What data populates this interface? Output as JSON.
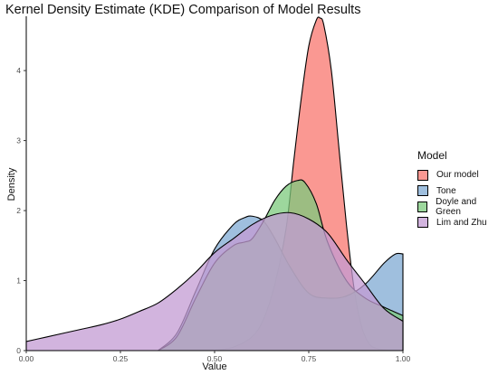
{
  "chart_data": {
    "type": "area",
    "title": "Kernel Density Estimate (KDE) Comparison of Model Results",
    "xlabel": "Value",
    "ylabel": "Density",
    "xlim": [
      0,
      1
    ],
    "ylim": [
      0,
      4.75
    ],
    "x_ticks": [
      "0.00",
      "0.25",
      "0.50",
      "0.75",
      "1.00"
    ],
    "y_ticks": [
      "0",
      "1",
      "2",
      "3",
      "4"
    ],
    "legend": {
      "title": "Model",
      "position": "right"
    },
    "grid": false,
    "series": [
      {
        "name": "Our model",
        "color": "#F8766D",
        "x": [
          0.5,
          0.55,
          0.6,
          0.63,
          0.66,
          0.69,
          0.71,
          0.73,
          0.75,
          0.77,
          0.78,
          0.79,
          0.81,
          0.83,
          0.85,
          0.87,
          0.89,
          0.91,
          0.93,
          0.95,
          0.97,
          1.0
        ],
        "y": [
          0,
          0.05,
          0.2,
          0.45,
          0.95,
          1.75,
          2.7,
          3.6,
          4.35,
          4.72,
          4.75,
          4.65,
          4.0,
          2.9,
          1.8,
          0.9,
          0.35,
          0.1,
          0.03,
          0.01,
          0.005,
          0
        ]
      },
      {
        "name": "Tone",
        "color": "#7FAAD3",
        "x": [
          0.35,
          0.4,
          0.45,
          0.5,
          0.55,
          0.58,
          0.6,
          0.63,
          0.66,
          0.7,
          0.75,
          0.8,
          0.85,
          0.9,
          0.95,
          0.98,
          1.0
        ],
        "y": [
          0,
          0.25,
          0.85,
          1.45,
          1.8,
          1.9,
          1.92,
          1.85,
          1.6,
          1.2,
          0.82,
          0.75,
          0.78,
          0.95,
          1.25,
          1.38,
          1.38
        ]
      },
      {
        "name": "Doyle and Green",
        "color": "#7CC97C",
        "x": [
          0.35,
          0.4,
          0.45,
          0.5,
          0.55,
          0.58,
          0.6,
          0.63,
          0.66,
          0.69,
          0.72,
          0.74,
          0.77,
          0.8,
          0.85,
          0.9,
          0.95,
          1.0
        ],
        "y": [
          0,
          0.2,
          0.75,
          1.25,
          1.5,
          1.55,
          1.6,
          1.85,
          2.15,
          2.35,
          2.43,
          2.4,
          2.1,
          1.55,
          1.0,
          0.75,
          0.62,
          0.5
        ]
      },
      {
        "name": "Lim and Zhu",
        "color": "#C39BD3",
        "x": [
          0.0,
          0.05,
          0.1,
          0.15,
          0.2,
          0.25,
          0.3,
          0.35,
          0.4,
          0.45,
          0.5,
          0.55,
          0.6,
          0.65,
          0.7,
          0.75,
          0.8,
          0.85,
          0.9,
          0.95,
          1.0
        ],
        "y": [
          0.13,
          0.19,
          0.25,
          0.31,
          0.37,
          0.45,
          0.56,
          0.68,
          0.88,
          1.12,
          1.4,
          1.6,
          1.8,
          1.93,
          1.97,
          1.88,
          1.68,
          1.3,
          0.95,
          0.6,
          0.42
        ]
      }
    ]
  }
}
